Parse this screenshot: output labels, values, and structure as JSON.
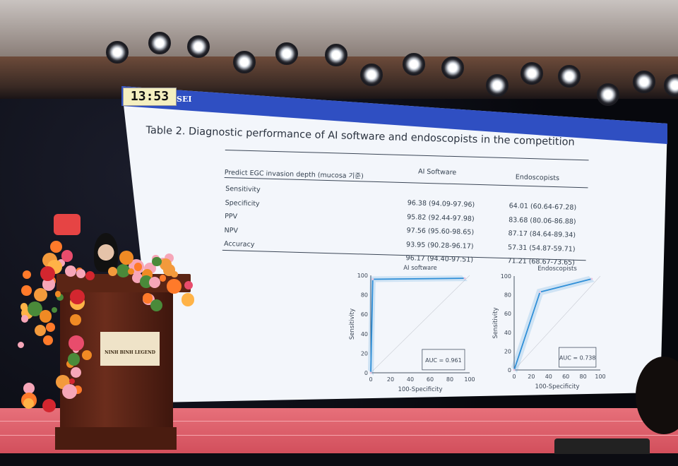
{
  "clock": "13:53",
  "slide_logo": "SEI",
  "slide": {
    "title": "Table 2. Diagnostic performance of AI software and endoscopists in the competition",
    "table": {
      "header": [
        "Predict EGC invasion depth (mucosa 기준)",
        "AI Software",
        "Endoscopists"
      ],
      "rows": [
        {
          "metric": "Sensitivity",
          "ai": "96.38 (94.09-97.96)",
          "endo": "64.01 (60.64-67.28)"
        },
        {
          "metric": "Specificity",
          "ai": "95.82 (92.44-97.98)",
          "endo": "83.68 (80.06-86.88)"
        },
        {
          "metric": "PPV",
          "ai": "97.56 (95.60-98.65)",
          "endo": "87.17 (84.64-89.34)"
        },
        {
          "metric": "NPV",
          "ai": "93.95 (90.28-96.17)",
          "endo": "57.31 (54.87-59.71)"
        },
        {
          "metric": "Accuracy",
          "ai": "96.17 (94.40-97.51)",
          "endo": "71.21 (68.67-73.65)"
        }
      ]
    }
  },
  "podium_sign": "NINH BINH LEGEND",
  "chart_data": [
    {
      "type": "line",
      "title": "AI software",
      "xlabel": "100-Specificity",
      "ylabel": "Sensitivity",
      "xlim": [
        0,
        100
      ],
      "ylim": [
        0,
        100
      ],
      "xticks": [
        "0",
        "20",
        "40",
        "60",
        "80",
        "100"
      ],
      "yticks": [
        "0",
        "20",
        "40",
        "60",
        "80",
        "100"
      ],
      "x": [
        0,
        2,
        95
      ],
      "y": [
        0,
        96,
        97
      ],
      "annotation": "AUC = 0.961",
      "color": "#2f8fd8"
    },
    {
      "type": "line",
      "title": "Endoscopists",
      "xlabel": "100-Specificity",
      "ylabel": "Sensitivity",
      "xlim": [
        0,
        100
      ],
      "ylim": [
        0,
        100
      ],
      "xticks": [
        "0",
        "20",
        "40",
        "60",
        "80",
        "100"
      ],
      "yticks": [
        "0",
        "20",
        "40",
        "60",
        "80",
        "100"
      ],
      "x": [
        0,
        30,
        90
      ],
      "y": [
        0,
        83,
        97
      ],
      "annotation": "AUC = 0.738",
      "color": "#2f8fd8"
    }
  ]
}
